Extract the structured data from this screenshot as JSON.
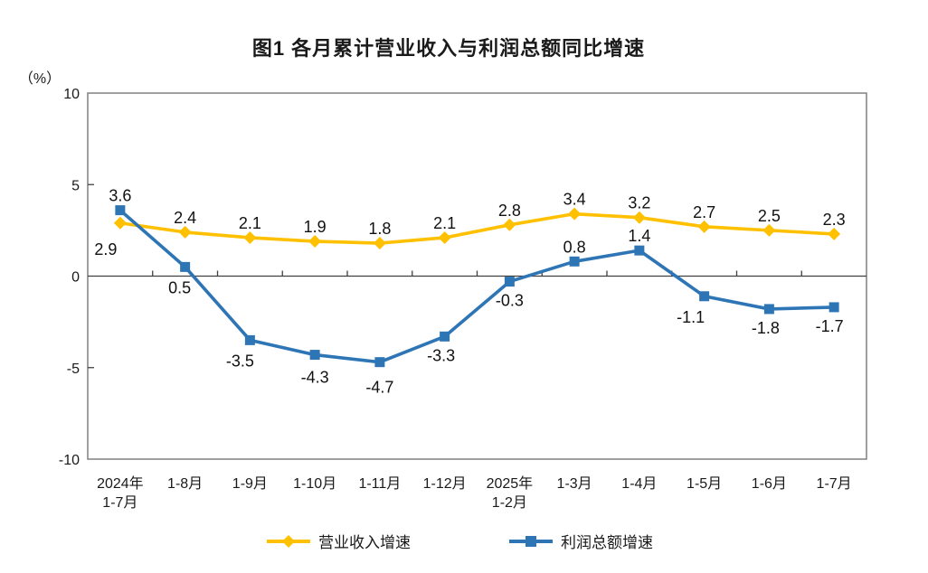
{
  "chart_data": {
    "type": "line",
    "title": "图1 各月累计营业收入与利润总额同比增速",
    "y_axis": {
      "unit_label": "（%）",
      "min": -10,
      "max": 10,
      "ticks": [
        10,
        5,
        0,
        -5,
        -10
      ]
    },
    "grid": false,
    "legend_position": "bottom-center",
    "categories": [
      "2024年\n1-7月",
      "1-8月",
      "1-9月",
      "1-10月",
      "1-11月",
      "1-12月",
      "2025年\n1-2月",
      "1-3月",
      "1-4月",
      "1-5月",
      "1-6月",
      "1-7月"
    ],
    "series": [
      {
        "id": "revenue-growth",
        "name": "营业收入增速",
        "color": "#FFC000",
        "marker": "diamond",
        "values": [
          2.9,
          2.4,
          2.1,
          1.9,
          1.8,
          2.1,
          2.8,
          3.4,
          3.2,
          2.7,
          2.5,
          2.3
        ],
        "label_side": [
          "below",
          "above",
          "above",
          "above",
          "above",
          "above",
          "above",
          "above",
          "above",
          "above",
          "above",
          "above"
        ],
        "label_offsets": {
          "0": [
            -16,
            8
          ]
        }
      },
      {
        "id": "profit-growth",
        "name": "利润总额增速",
        "color": "#2E75B6",
        "marker": "square",
        "values": [
          3.6,
          0.5,
          -3.5,
          -4.3,
          -4.7,
          -3.3,
          -0.3,
          0.8,
          1.4,
          -1.1,
          -1.8,
          -1.7
        ],
        "label_side": [
          "above",
          "below",
          "below",
          "below",
          "below",
          "below",
          "below",
          "above",
          "above",
          "below",
          "below",
          "below"
        ],
        "label_offsets": {
          "1": [
            -6,
            2
          ],
          "2": [
            -11,
            2
          ],
          "3": [
            0,
            4
          ],
          "4": [
            0,
            7
          ],
          "5": [
            -4,
            0
          ],
          "9": [
            -15,
            2
          ],
          "10": [
            -4,
            0
          ],
          "11": [
            -5,
            0
          ]
        }
      }
    ]
  }
}
